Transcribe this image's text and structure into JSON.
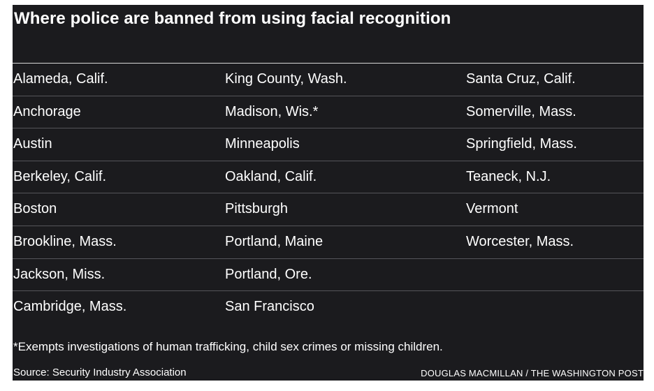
{
  "title": "Where police are banned from using facial recognition",
  "rows": [
    [
      "Alameda, Calif.",
      "King County, Wash.",
      "Santa Cruz, Calif."
    ],
    [
      "Anchorage",
      "Madison, Wis.*",
      "Somerville, Mass."
    ],
    [
      "Austin",
      "Minneapolis",
      "Springfield, Mass."
    ],
    [
      "Berkeley, Calif.",
      "Oakland, Calif.",
      "Teaneck, N.J."
    ],
    [
      "Boston",
      "Pittsburgh",
      "Vermont"
    ],
    [
      "Brookline, Mass.",
      "Portland, Maine",
      "Worcester, Mass."
    ],
    [
      "Jackson, Miss.",
      "Portland, Ore.",
      ""
    ],
    [
      "Cambridge, Mass.",
      "San Francisco",
      ""
    ]
  ],
  "footnote": "*Exempts investigations of human trafficking, child sex crimes or missing children.",
  "source": "Source: Security Industry Association",
  "credit": "DOUGLAS MACMILLAN / THE WASHINGTON POST"
}
